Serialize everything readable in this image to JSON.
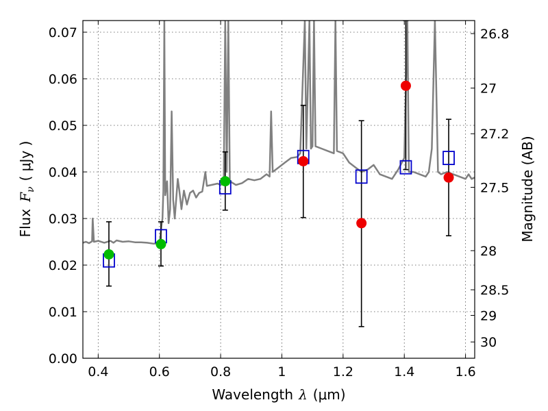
{
  "chart_data": {
    "type": "scatter",
    "xlabel_text": "Wavelength",
    "xlabel_math": "λ",
    "xlabel_unit": "(μm)",
    "ylabel_text": "Flux",
    "ylabel_math": "F",
    "ylabel_sub": "ν",
    "ylabel_unit": "( μJy )",
    "y2label": "Magnitude (AB)",
    "xlim": [
      0.35,
      1.63
    ],
    "ylim": [
      0.0,
      0.0725
    ],
    "grid": true,
    "x_ticks": [
      0.4,
      0.6,
      0.8,
      1.0,
      1.2,
      1.4,
      1.6
    ],
    "x_tick_labels": [
      "0.4",
      "0.6",
      "0.8",
      "1",
      "1.2",
      "1.4",
      "1.6"
    ],
    "y_ticks": [
      0.0,
      0.01,
      0.02,
      0.03,
      0.04,
      0.05,
      0.06,
      0.07
    ],
    "y_tick_labels": [
      "0.00",
      "0.01",
      "0.02",
      "0.03",
      "0.04",
      "0.05",
      "0.06",
      "0.07"
    ],
    "y2_ticks": [
      {
        "flux": 0.0697,
        "label": "26.8"
      },
      {
        "flux": 0.058,
        "label": "27"
      },
      {
        "flux": 0.0482,
        "label": "27.2"
      },
      {
        "flux": 0.0367,
        "label": "27.5"
      },
      {
        "flux": 0.0231,
        "label": "28"
      },
      {
        "flux": 0.0147,
        "label": "28.5"
      },
      {
        "flux": 0.0092,
        "label": "29"
      },
      {
        "flux": 0.0035,
        "label": "30"
      }
    ],
    "series": [
      {
        "kind": "spectrum",
        "color": "#808080",
        "points": [
          [
            0.35,
            0.0248
          ],
          [
            0.36,
            0.025
          ],
          [
            0.37,
            0.0247
          ],
          [
            0.38,
            0.0251
          ],
          [
            0.382,
            0.03
          ],
          [
            0.386,
            0.025
          ],
          [
            0.4,
            0.0252
          ],
          [
            0.42,
            0.0248
          ],
          [
            0.44,
            0.0252
          ],
          [
            0.45,
            0.0248
          ],
          [
            0.46,
            0.0253
          ],
          [
            0.48,
            0.025
          ],
          [
            0.5,
            0.0251
          ],
          [
            0.52,
            0.0249
          ],
          [
            0.54,
            0.0249
          ],
          [
            0.56,
            0.0248
          ],
          [
            0.58,
            0.0246
          ],
          [
            0.6,
            0.0247
          ],
          [
            0.603,
            0.0262
          ],
          [
            0.607,
            0.0285
          ],
          [
            0.61,
            0.03
          ],
          [
            0.613,
            0.036
          ],
          [
            0.616,
            0.0725
          ],
          [
            0.619,
            0.035
          ],
          [
            0.625,
            0.038
          ],
          [
            0.63,
            0.029
          ],
          [
            0.635,
            0.032
          ],
          [
            0.64,
            0.053
          ],
          [
            0.645,
            0.034
          ],
          [
            0.65,
            0.03
          ],
          [
            0.66,
            0.0385
          ],
          [
            0.665,
            0.036
          ],
          [
            0.672,
            0.032
          ],
          [
            0.68,
            0.036
          ],
          [
            0.69,
            0.033
          ],
          [
            0.7,
            0.0355
          ],
          [
            0.71,
            0.036
          ],
          [
            0.72,
            0.0345
          ],
          [
            0.73,
            0.0355
          ],
          [
            0.74,
            0.0358
          ],
          [
            0.75,
            0.04
          ],
          [
            0.755,
            0.037
          ],
          [
            0.77,
            0.0372
          ],
          [
            0.79,
            0.0375
          ],
          [
            0.8,
            0.0372
          ],
          [
            0.81,
            0.0375
          ],
          [
            0.815,
            0.0725
          ],
          [
            0.82,
            0.04
          ],
          [
            0.825,
            0.0725
          ],
          [
            0.83,
            0.038
          ],
          [
            0.85,
            0.0372
          ],
          [
            0.87,
            0.0376
          ],
          [
            0.89,
            0.0385
          ],
          [
            0.91,
            0.0382
          ],
          [
            0.93,
            0.0385
          ],
          [
            0.95,
            0.0395
          ],
          [
            0.96,
            0.039
          ],
          [
            0.965,
            0.053
          ],
          [
            0.97,
            0.04
          ],
          [
            0.99,
            0.041
          ],
          [
            1.01,
            0.042
          ],
          [
            1.03,
            0.043
          ],
          [
            1.05,
            0.0432
          ],
          [
            1.06,
            0.044
          ],
          [
            1.075,
            0.0725
          ],
          [
            1.08,
            0.045
          ],
          [
            1.09,
            0.0725
          ],
          [
            1.095,
            0.045
          ],
          [
            1.1,
            0.0455
          ],
          [
            1.105,
            0.0725
          ],
          [
            1.11,
            0.0455
          ],
          [
            1.13,
            0.045
          ],
          [
            1.15,
            0.0445
          ],
          [
            1.17,
            0.044
          ],
          [
            1.175,
            0.0725
          ],
          [
            1.18,
            0.0445
          ],
          [
            1.2,
            0.044
          ],
          [
            1.22,
            0.042
          ],
          [
            1.24,
            0.041
          ],
          [
            1.26,
            0.04
          ],
          [
            1.28,
            0.0405
          ],
          [
            1.3,
            0.0415
          ],
          [
            1.32,
            0.0395
          ],
          [
            1.34,
            0.039
          ],
          [
            1.36,
            0.0385
          ],
          [
            1.38,
            0.0405
          ],
          [
            1.4,
            0.043
          ],
          [
            1.41,
            0.0725
          ],
          [
            1.415,
            0.04
          ],
          [
            1.43,
            0.04
          ],
          [
            1.45,
            0.0395
          ],
          [
            1.47,
            0.039
          ],
          [
            1.48,
            0.04
          ],
          [
            1.49,
            0.045
          ],
          [
            1.5,
            0.0725
          ],
          [
            1.51,
            0.04
          ],
          [
            1.52,
            0.0395
          ],
          [
            1.54,
            0.04
          ],
          [
            1.56,
            0.0395
          ],
          [
            1.58,
            0.039
          ],
          [
            1.6,
            0.0385
          ],
          [
            1.61,
            0.0395
          ],
          [
            1.62,
            0.0385
          ],
          [
            1.63,
            0.0388
          ]
        ]
      },
      {
        "kind": "model-photometry",
        "marker": "open-square",
        "color": "#0000cc",
        "points": [
          [
            0.435,
            0.021
          ],
          [
            0.605,
            0.0262
          ],
          [
            0.815,
            0.0367
          ],
          [
            1.07,
            0.0432
          ],
          [
            1.26,
            0.039
          ],
          [
            1.405,
            0.041
          ],
          [
            1.545,
            0.043
          ]
        ]
      },
      {
        "kind": "observed-optical",
        "marker": "filled-circle",
        "color": "#00bb00",
        "points": [
          {
            "x": 0.435,
            "y": 0.0223,
            "yerr_low": 0.0155,
            "yerr_high": 0.0293
          },
          {
            "x": 0.605,
            "y": 0.0245,
            "yerr_low": 0.0198,
            "yerr_high": 0.0293
          },
          {
            "x": 0.815,
            "y": 0.038,
            "yerr_low": 0.0318,
            "yerr_high": 0.0443
          }
        ]
      },
      {
        "kind": "observed-nir",
        "marker": "filled-circle",
        "color": "#ee0000",
        "points": [
          {
            "x": 1.07,
            "y": 0.0423,
            "yerr_low": 0.0302,
            "yerr_high": 0.0543
          },
          {
            "x": 1.26,
            "y": 0.029,
            "yerr_low": 0.0068,
            "yerr_high": 0.051
          },
          {
            "x": 1.405,
            "y": 0.0585,
            "yerr_low": 0.0405,
            "yerr_high": 0.0725
          },
          {
            "x": 1.545,
            "y": 0.0388,
            "yerr_low": 0.0263,
            "yerr_high": 0.0513
          }
        ]
      }
    ]
  }
}
